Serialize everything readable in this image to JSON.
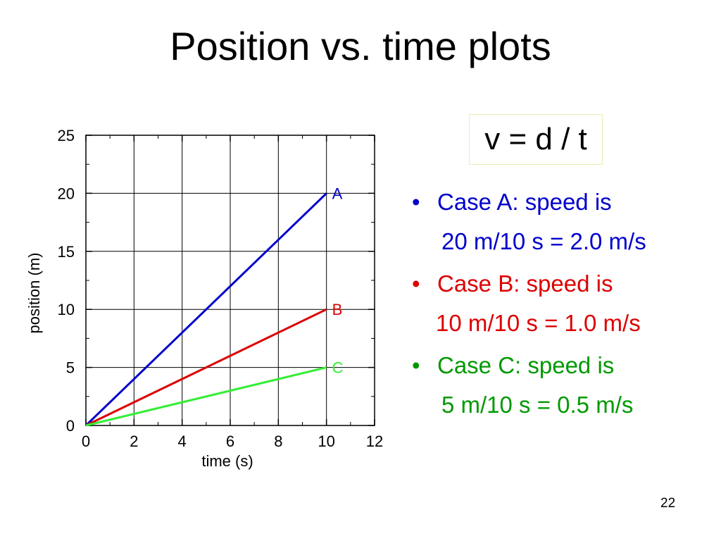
{
  "slide": {
    "title": "Position vs. time plots",
    "formula": "v = d / t",
    "page_number": "22",
    "bullet": "•",
    "cases": [
      {
        "line1": "Case A: speed is",
        "line2": "20 m/10 s = 2.0 m/s",
        "color": "#0000cc"
      },
      {
        "line1": "Case B: speed is",
        "line2": "10 m/10 s = 1.0 m/s",
        "color": "#dd0000"
      },
      {
        "line1": "Case C: speed is",
        "line2": "5 m/10 s = 0.5 m/s",
        "color": "#009900"
      }
    ]
  },
  "chart_data": {
    "type": "line",
    "xlabel": "time (s)",
    "ylabel": "position  (m)",
    "xlim": [
      0,
      12
    ],
    "ylim": [
      0,
      25
    ],
    "xticks": [
      0,
      2,
      4,
      6,
      8,
      10,
      12
    ],
    "yticks": [
      0,
      5,
      10,
      15,
      20,
      25
    ],
    "grid": true,
    "series": [
      {
        "name": "A",
        "x": [
          0,
          10
        ],
        "y": [
          0,
          20
        ],
        "color": "#0000cc"
      },
      {
        "name": "B",
        "x": [
          0,
          10
        ],
        "y": [
          0,
          10
        ],
        "color": "#dd0000"
      },
      {
        "name": "C",
        "x": [
          0,
          10
        ],
        "y": [
          0,
          5
        ],
        "color": "#33ee33"
      }
    ]
  }
}
